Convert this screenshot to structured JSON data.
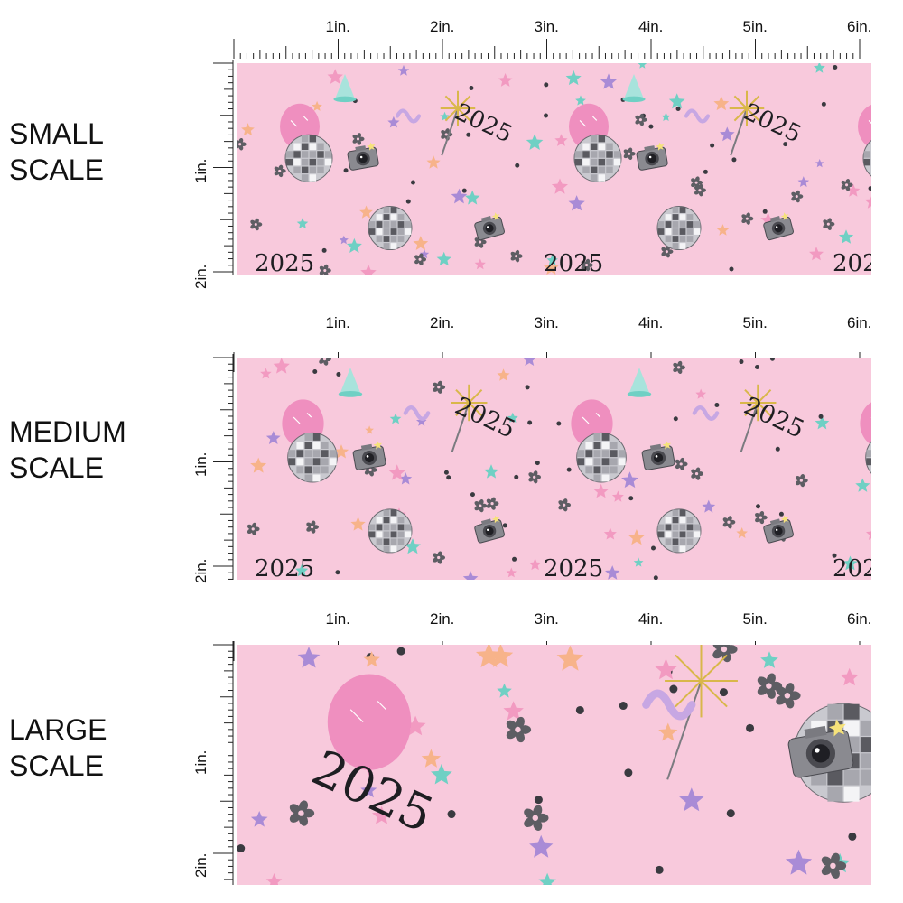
{
  "rows": [
    {
      "id": "small",
      "label_line1": "SMALL",
      "label_line2": "SCALE",
      "inch_labels": [
        "1in.",
        "2in.",
        "3in.",
        "4in.",
        "5in.",
        "6in."
      ],
      "v_labels": [
        "1in.",
        "2in."
      ],
      "motif_year": "2025"
    },
    {
      "id": "medium",
      "label_line1": "MEDIUM",
      "label_line2": "SCALE",
      "inch_labels": [
        "1in.",
        "2in.",
        "3in.",
        "4in.",
        "5in.",
        "6in."
      ],
      "v_labels": [
        "1in.",
        "2in."
      ],
      "motif_year": "2025"
    },
    {
      "id": "large",
      "label_line1": "LARGE",
      "label_line2": "SCALE",
      "inch_labels": [
        "1in.",
        "2in.",
        "3in.",
        "4in.",
        "5in.",
        "6in."
      ],
      "v_labels": [
        "1in.",
        "2in."
      ],
      "motif_year": "2025"
    }
  ],
  "colors": {
    "background_pink": "#f8c9dc",
    "balloon_pink": "#ef8fbf",
    "star_purple": "#a98bd6",
    "star_teal": "#6fd0c4",
    "star_peach": "#f7b38a",
    "flower_gray": "#5d5d63",
    "sparkler_gold": "#d9b74a",
    "ribbon_lavender": "#c7a7e3"
  },
  "icons": [
    "disco-ball-icon",
    "camera-icon",
    "balloon-icon",
    "star-icon",
    "flower-icon",
    "sparkler-icon",
    "party-hat-icon",
    "ribbon-icon"
  ]
}
